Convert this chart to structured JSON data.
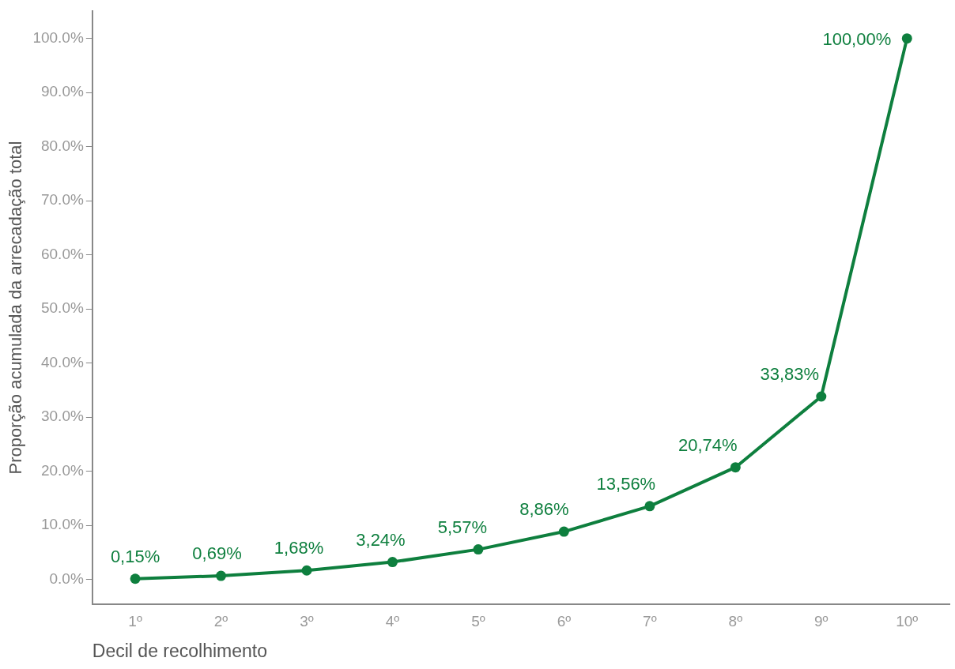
{
  "chart_data": {
    "type": "line",
    "xlabel": "Decil de recolhimento",
    "ylabel": "Proporção acumulada da arrecadação total",
    "categories": [
      "1º",
      "2º",
      "3º",
      "4º",
      "5º",
      "6º",
      "7º",
      "8º",
      "9º",
      "10º"
    ],
    "series": [
      {
        "color": "#0e7f3e",
        "values": [
          0.15,
          0.69,
          1.68,
          3.24,
          5.57,
          8.86,
          13.56,
          20.74,
          33.83,
          100
        ],
        "value_labels": [
          "0,15%",
          "0,69%",
          "1,68%",
          "3,24%",
          "5,57%",
          "8,86%",
          "13,56%",
          "20,74%",
          "33,83%",
          "100,00%"
        ]
      }
    ],
    "ylim": [
      -4.5,
      105
    ],
    "yticks": [
      {
        "value": 0,
        "label": "0.0%"
      },
      {
        "value": 10,
        "label": "10.0%"
      },
      {
        "value": 20,
        "label": "20.0%"
      },
      {
        "value": 30,
        "label": "30.0%"
      },
      {
        "value": 40,
        "label": "40.0%"
      },
      {
        "value": 50,
        "label": "50.0%"
      },
      {
        "value": 60,
        "label": "60.0%"
      },
      {
        "value": 70,
        "label": "70.0%"
      },
      {
        "value": 80,
        "label": "80.0%"
      },
      {
        "value": 90,
        "label": "90.0%"
      },
      {
        "value": 100,
        "label": "100.0%"
      }
    ],
    "grid": false,
    "legend": false,
    "marker": "circle",
    "line_style": "solid"
  }
}
